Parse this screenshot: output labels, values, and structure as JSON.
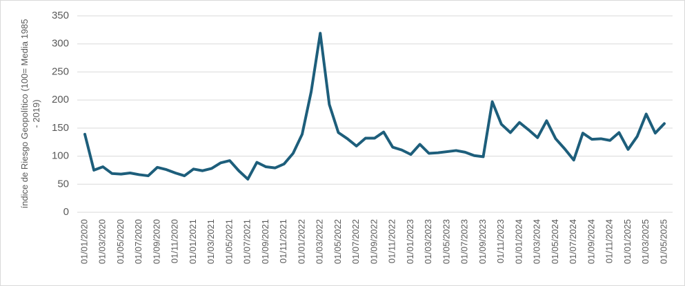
{
  "chart_data": {
    "type": "line",
    "ylabel": [
      "índice de Riesgo Geopolítico (100= Media 1985",
      "- 2019)"
    ],
    "categories": [
      "01/01/2020",
      null,
      "01/03/2020",
      null,
      "01/05/2020",
      null,
      "01/07/2020",
      null,
      "01/09/2020",
      null,
      "01/11/2020",
      null,
      "01/01/2021",
      null,
      "01/03/2021",
      null,
      "01/05/2021",
      null,
      "01/07/2021",
      null,
      "01/09/2021",
      null,
      "01/11/2021",
      null,
      "01/01/2022",
      null,
      "01/03/2022",
      null,
      "01/05/2022",
      null,
      "01/07/2022",
      null,
      "01/09/2022",
      null,
      "01/11/2022",
      null,
      "01/01/2023",
      null,
      "01/03/2023",
      null,
      "01/05/2023",
      null,
      "01/07/2023",
      null,
      "01/09/2023",
      null,
      "01/11/2023",
      null,
      "01/01/2024",
      null,
      "01/03/2024",
      null,
      "01/05/2024",
      null,
      "01/07/2024",
      null,
      "01/09/2024",
      null,
      "01/11/2024",
      null,
      "01/01/2025",
      null,
      "01/03/2025",
      null,
      "01/05/2025"
    ],
    "values": [
      139,
      75,
      81,
      69,
      68,
      70,
      67,
      65,
      80,
      76,
      70,
      65,
      77,
      74,
      78,
      88,
      92,
      74,
      59,
      89,
      81,
      79,
      86,
      105,
      139,
      215,
      319,
      192,
      142,
      131,
      118,
      132,
      132,
      143,
      116,
      111,
      103,
      121,
      105,
      106,
      108,
      110,
      107,
      101,
      99,
      197,
      157,
      142,
      160,
      147,
      133,
      163,
      131,
      113,
      93,
      141,
      130,
      131,
      128,
      142,
      112,
      135,
      175,
      141,
      158
    ],
    "color": "#1d5e7b",
    "ylim": [
      0,
      350
    ],
    "yticks": [
      0,
      50,
      100,
      150,
      200,
      250,
      300,
      350
    ],
    "grid": true
  }
}
